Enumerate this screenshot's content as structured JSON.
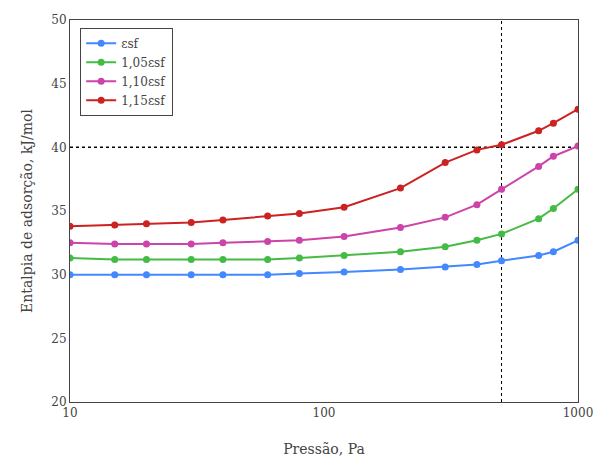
{
  "chart_data": {
    "type": "line",
    "xlabel": "Pressão, Pa",
    "ylabel": "Entalpia de adsorção, kJ/mol",
    "x": [
      10,
      15,
      20,
      30,
      40,
      60,
      80,
      120,
      200,
      300,
      400,
      500,
      700,
      800,
      1000
    ],
    "series": [
      {
        "name": "εsf",
        "color": "#4488ff",
        "values": [
          30.0,
          30.0,
          30.0,
          30.0,
          30.0,
          30.0,
          30.1,
          30.2,
          30.4,
          30.6,
          30.8,
          31.1,
          31.5,
          31.8,
          32.7
        ]
      },
      {
        "name": "1,05εsf",
        "color": "#44bb44",
        "values": [
          31.3,
          31.2,
          31.2,
          31.2,
          31.2,
          31.2,
          31.3,
          31.5,
          31.8,
          32.2,
          32.7,
          33.2,
          34.4,
          35.2,
          36.7
        ]
      },
      {
        "name": "1,10εsf",
        "color": "#cc44aa",
        "values": [
          32.5,
          32.4,
          32.4,
          32.4,
          32.5,
          32.6,
          32.7,
          33.0,
          33.7,
          34.5,
          35.5,
          36.7,
          38.5,
          39.3,
          40.1
        ]
      },
      {
        "name": "1,15εsf",
        "color": "#cc2222",
        "values": [
          33.8,
          33.9,
          34.0,
          34.1,
          34.3,
          34.6,
          34.8,
          35.3,
          36.8,
          38.8,
          39.8,
          40.2,
          41.3,
          41.9,
          43.0
        ]
      }
    ],
    "xlim": [
      10,
      1000
    ],
    "xticks": [
      10,
      100,
      1000
    ],
    "ylim": [
      20,
      50
    ],
    "yticks": [
      20,
      25,
      30,
      35,
      40,
      45,
      50
    ],
    "log": "x",
    "grid": false,
    "legend": "upper left",
    "marker": "circle",
    "line_style": "solid",
    "hline": 40,
    "vline": 500
  }
}
